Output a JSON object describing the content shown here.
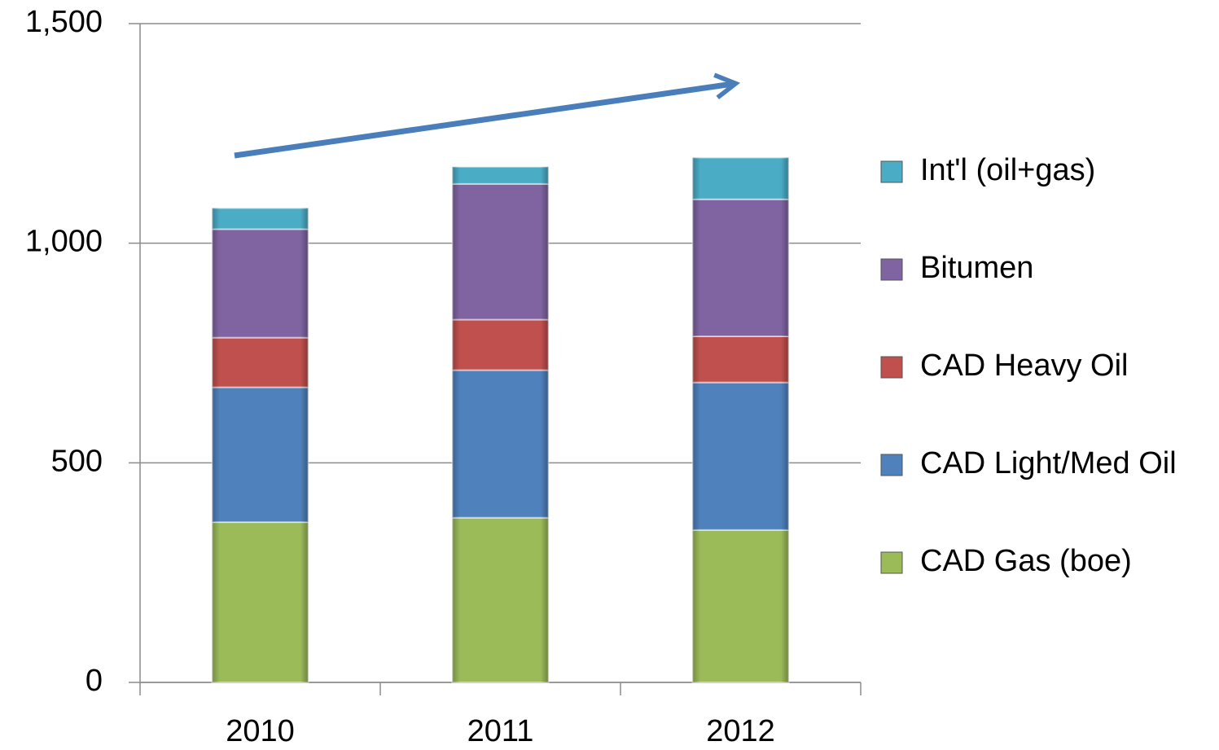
{
  "chart_data": {
    "type": "stacked_bar",
    "categories": [
      "2010",
      "2011",
      "2012"
    ],
    "series": [
      {
        "name": "CAD Gas (boe)",
        "color": "#9bbb59",
        "values": [
          365,
          375,
          347
        ]
      },
      {
        "name": "CAD Light/Med Oil",
        "color": "#4f81bd",
        "values": [
          307,
          336,
          336
        ]
      },
      {
        "name": "CAD Heavy Oil",
        "color": "#c0504d",
        "values": [
          113,
          115,
          105
        ]
      },
      {
        "name": "Bitumen",
        "color": "#8064a2",
        "values": [
          247,
          309,
          312
        ]
      },
      {
        "name": "Int'l (oil+gas)",
        "color": "#4bacc6",
        "values": [
          48,
          39,
          95
        ]
      }
    ],
    "ylim": [
      0,
      1500
    ],
    "yticks": [
      0,
      500,
      {
        "value": 1000,
        "label": "1,000"
      },
      {
        "value": 1500,
        "label": "1,500"
      }
    ],
    "grid": true,
    "legend": "right"
  }
}
